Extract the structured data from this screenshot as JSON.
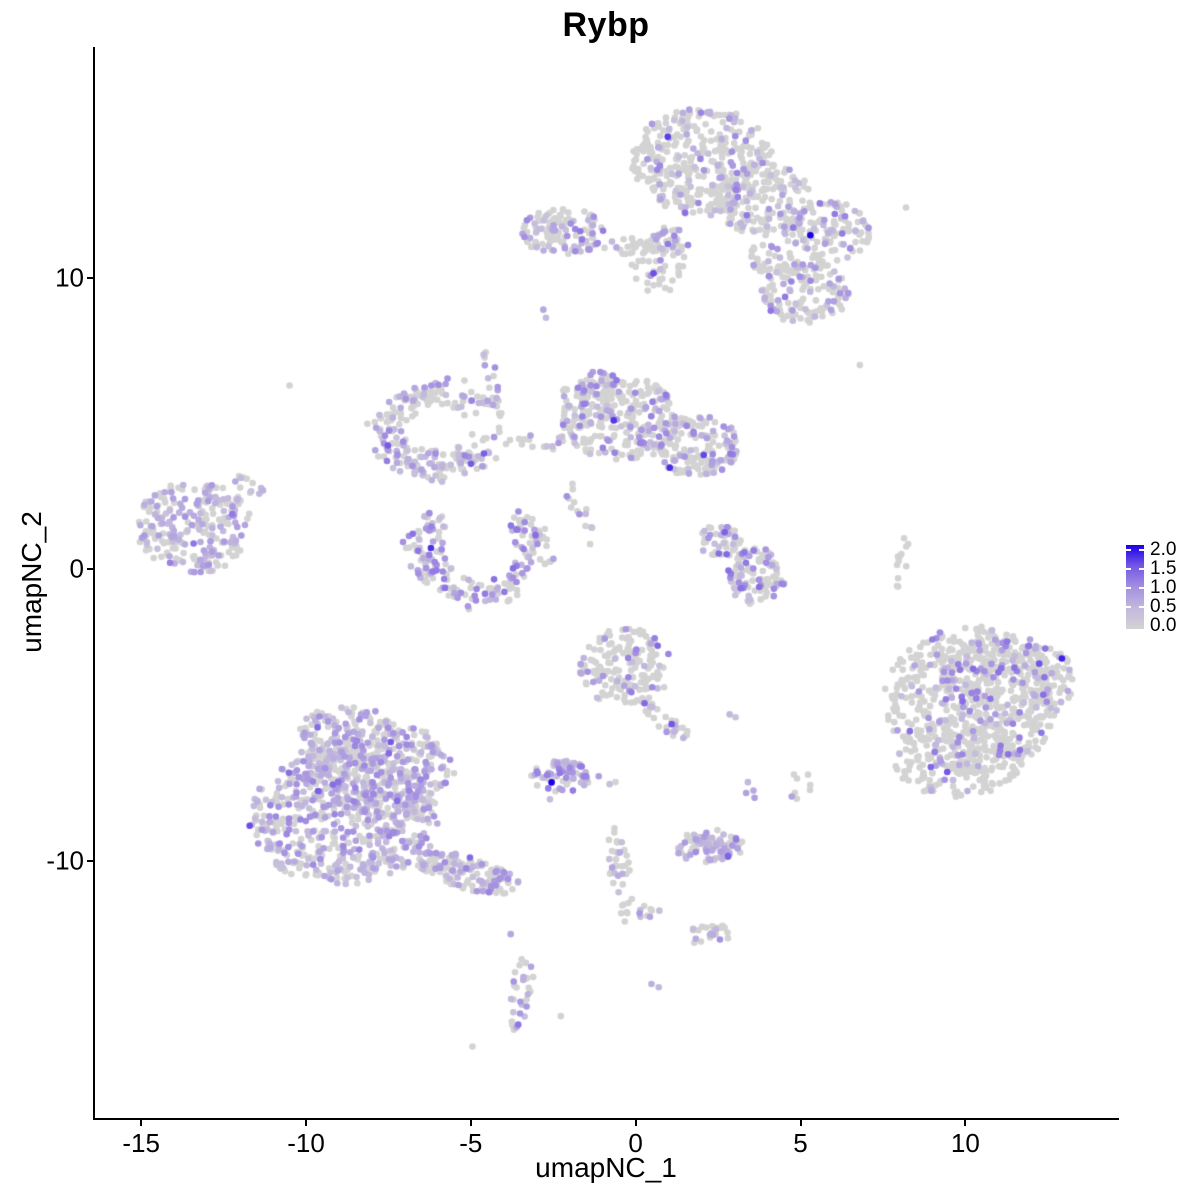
{
  "title": "Rybp",
  "chart_data": {
    "type": "scatter",
    "subtype": "umap-feature-plot",
    "title": "Rybp",
    "xlabel": "umapNC_1",
    "ylabel": "umapNC_2",
    "xlim": [
      -16.4,
      14.6
    ],
    "ylim": [
      -18.8,
      17.9
    ],
    "x_ticks": [
      -15,
      -10,
      -5,
      0,
      5,
      10
    ],
    "y_ticks": [
      -10,
      0,
      10
    ],
    "grid": false,
    "point_radius_px": 3.3,
    "colors": {
      "background": "#ffffff",
      "axis": "#000000",
      "zero_expression": "#D3D3D3",
      "gradient_stops": [
        [
          0,
          "#D3D3D3"
        ],
        [
          0.25,
          "#C2B8DD"
        ],
        [
          0.5,
          "#A48FE1"
        ],
        [
          0.75,
          "#7557E5"
        ],
        [
          1,
          "#1B00EA"
        ]
      ]
    },
    "legend": {
      "position": "right",
      "min": 0.0,
      "max": 2.0,
      "ticks": [
        0.0,
        0.5,
        1.0,
        1.5,
        2.0
      ],
      "tick_labels": [
        "0.0",
        "0.5",
        "1.0",
        "1.5",
        "2.0"
      ]
    },
    "cluster_format": [
      "cx",
      "cy",
      "rx",
      "ry",
      "rot_deg",
      "n",
      "frac_expressing",
      "v_min",
      "v_max"
    ],
    "clusters": [
      [
        2.06,
        13.97,
        2.2,
        1.85,
        0,
        380,
        0.2,
        0.3,
        1.1
      ],
      [
        3.88,
        12.67,
        1.45,
        1.25,
        0,
        170,
        0.2,
        0.3,
        1.2
      ],
      [
        5.79,
        11.57,
        1.35,
        1.05,
        0,
        120,
        0.25,
        0.3,
        1.2
      ],
      [
        5.12,
        9.49,
        1.35,
        1.1,
        0,
        130,
        0.3,
        0.3,
        1.3
      ],
      [
        4.18,
        10.55,
        0.8,
        0.6,
        -30,
        40,
        0.25,
        0.3,
        1.0
      ],
      [
        0.7,
        10.45,
        0.85,
        1.0,
        0,
        45,
        0.2,
        0.3,
        1.0
      ],
      [
        -2.18,
        11.57,
        1.3,
        0.8,
        0,
        115,
        0.38,
        0.3,
        1.2
      ],
      [
        -0.36,
        11.06,
        0.95,
        0.3,
        0,
        25,
        0.2,
        0.3,
        0.9
      ],
      [
        1.0,
        11.23,
        0.62,
        0.5,
        0,
        38,
        0.42,
        0.3,
        1.2
      ],
      [
        -0.52,
        5.2,
        1.75,
        1.45,
        0,
        270,
        0.3,
        0.3,
        1.2
      ],
      [
        1.82,
        4.25,
        1.35,
        1.05,
        0,
        160,
        0.28,
        0.3,
        1.2
      ],
      [
        -1.12,
        6.33,
        0.55,
        0.5,
        0,
        40,
        0.35,
        0.3,
        1.1
      ],
      [
        -1.9,
        5.65,
        0.45,
        0.85,
        0,
        22,
        0.2,
        0.3,
        0.8
      ],
      [
        -13.4,
        1.47,
        1.75,
        1.6,
        0,
        235,
        0.48,
        0.3,
        0.9
      ],
      [
        -11.7,
        2.84,
        0.6,
        0.22,
        -35,
        12,
        0.4,
        0.3,
        0.8
      ],
      [
        2.58,
        0.96,
        0.68,
        0.58,
        0,
        45,
        0.35,
        0.3,
        1.4
      ],
      [
        3.67,
        -0.24,
        0.88,
        0.98,
        0,
        110,
        0.4,
        0.3,
        1.3
      ],
      [
        10.24,
        -4.45,
        2.7,
        2.5,
        0,
        500,
        0.15,
        0.4,
        1.3
      ],
      [
        11.3,
        -3.8,
        2.0,
        1.6,
        0,
        250,
        0.24,
        0.4,
        1.3
      ],
      [
        9.8,
        -6.5,
        2.0,
        1.3,
        0,
        200,
        0.15,
        0.4,
        1.2
      ],
      [
        -0.3,
        -3.36,
        1.4,
        1.35,
        0,
        170,
        0.27,
        0.3,
        1.2
      ],
      [
        0.94,
        -5.2,
        0.85,
        0.32,
        -40,
        25,
        0.3,
        0.3,
        1.0
      ],
      [
        -2.27,
        -7.09,
        0.9,
        0.55,
        0,
        70,
        0.72,
        0.4,
        1.2
      ],
      [
        -8.85,
        -8.56,
        2.9,
        2.3,
        0,
        560,
        0.58,
        0.3,
        1.1
      ],
      [
        -7.8,
        -6.9,
        2.3,
        1.7,
        0,
        300,
        0.5,
        0.3,
        1.1
      ],
      [
        -8.7,
        -5.75,
        1.7,
        1.05,
        0,
        150,
        0.45,
        0.3,
        1.0
      ],
      [
        -5.1,
        -10.4,
        1.65,
        0.55,
        -18,
        160,
        0.4,
        0.3,
        1.0
      ],
      [
        2.27,
        -9.52,
        1.05,
        0.6,
        0,
        85,
        0.65,
        0.3,
        0.9
      ],
      [
        5.0,
        -7.4,
        0.5,
        0.55,
        0,
        8,
        0.5,
        0.4,
        0.9
      ],
      [
        3.5,
        -7.55,
        0.3,
        0.3,
        0,
        4,
        0.95,
        0.5,
        0.9
      ],
      [
        8.06,
        0.27,
        0.18,
        0.9,
        -8,
        12,
        0.0,
        0.0,
        0.0
      ],
      [
        -4.33,
        6.16,
        0.22,
        1.5,
        8,
        22,
        0.3,
        0.3,
        1.0
      ],
      [
        -1.73,
        1.99,
        0.28,
        1.25,
        18,
        14,
        0.3,
        0.3,
        1.0
      ],
      [
        -0.45,
        -10.55,
        0.32,
        1.7,
        8,
        40,
        0.18,
        0.3,
        0.9
      ],
      [
        0.48,
        -11.8,
        0.4,
        0.32,
        0,
        9,
        0.3,
        0.3,
        0.9
      ],
      [
        2.24,
        -12.53,
        0.62,
        0.42,
        0,
        24,
        0.35,
        0.3,
        1.0
      ],
      [
        -3.45,
        -14.55,
        0.38,
        1.35,
        -8,
        30,
        0.5,
        0.3,
        1.0
      ],
      [
        -2.8,
        4.3,
        0.85,
        0.4,
        0,
        14,
        0.3,
        0.3,
        0.9
      ]
    ],
    "arc_format": [
      "cx",
      "cy",
      "rx",
      "ry",
      "thickness",
      "angle_start_deg",
      "angle_end_deg",
      "n",
      "frac_expressing",
      "v_min",
      "v_max"
    ],
    "arcs": [
      [
        -5.97,
        4.79,
        1.6,
        1.3,
        0.75,
        30,
        350,
        235,
        0.42,
        0.3,
        1.1
      ],
      [
        -4.76,
        0.58,
        1.7,
        1.45,
        0.7,
        120,
        415,
        200,
        0.48,
        0.3,
        1.3
      ]
    ],
    "singles_format": [
      "x",
      "y",
      "value"
    ],
    "singles": [
      [
        -2.8,
        8.9,
        0.7
      ],
      [
        -2.72,
        8.62,
        0.45
      ],
      [
        6.8,
        7.0,
        0.0
      ],
      [
        -10.5,
        6.3,
        0.0
      ],
      [
        8.2,
        12.4,
        0.0
      ],
      [
        -1.12,
        -7.09,
        0.8
      ],
      [
        -0.79,
        -7.36,
        0.35
      ],
      [
        -0.61,
        -7.29,
        0.0
      ],
      [
        -2.6,
        -7.88,
        0.4
      ],
      [
        -3.79,
        -12.5,
        0.7
      ],
      [
        0.48,
        -14.21,
        0.6
      ],
      [
        0.7,
        -14.32,
        0.5
      ],
      [
        -2.27,
        -15.31,
        0.0
      ],
      [
        -4.95,
        -16.35,
        0.0
      ],
      [
        2.85,
        -4.97,
        0.5
      ],
      [
        3.03,
        -5.07,
        0.3
      ],
      [
        -2.55,
        -7.3,
        2.0
      ],
      [
        5.3,
        11.45,
        2.0
      ]
    ]
  }
}
